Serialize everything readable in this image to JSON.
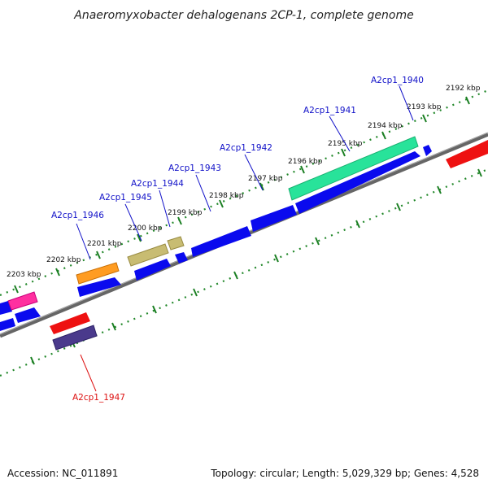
{
  "title": "Anaeromyxobacter dehalogenans 2CP-1, complete genome",
  "accession": "Accession: NC_011891",
  "topology": "Topology: circular; Length: 5,029,329 bp; Genes: 4,528",
  "colors": {
    "backbone": "#777777",
    "tick_ring": "#22882a",
    "label_forward": "#1010c8",
    "label_reverse": "#dd1111",
    "cds_blue": "#0a0aee",
    "cds_red": "#ee1111"
  },
  "ticks": [
    "2192 kbp",
    "2193 kbp",
    "2194 kbp",
    "2195 kbp",
    "2196 kbp",
    "2197 kbp",
    "2198 kbp",
    "2199 kbp",
    "2200 kbp",
    "2201 kbp",
    "2202 kbp",
    "2203 kbp"
  ],
  "genes": [
    {
      "name": "A2cp1_1940",
      "strand": "forward",
      "color": "#1010c8"
    },
    {
      "name": "A2cp1_1941",
      "strand": "forward",
      "color": "#1010c8"
    },
    {
      "name": "A2cp1_1942",
      "strand": "forward",
      "color": "#1010c8"
    },
    {
      "name": "A2cp1_1943",
      "strand": "forward",
      "color": "#1010c8"
    },
    {
      "name": "A2cp1_1944",
      "strand": "forward",
      "color": "#1010c8"
    },
    {
      "name": "A2cp1_1945",
      "strand": "forward",
      "color": "#1010c8"
    },
    {
      "name": "A2cp1_1946",
      "strand": "forward",
      "color": "#1010c8"
    },
    {
      "name": "A2cp1_1947",
      "strand": "reverse",
      "color": "#dd1111"
    }
  ]
}
